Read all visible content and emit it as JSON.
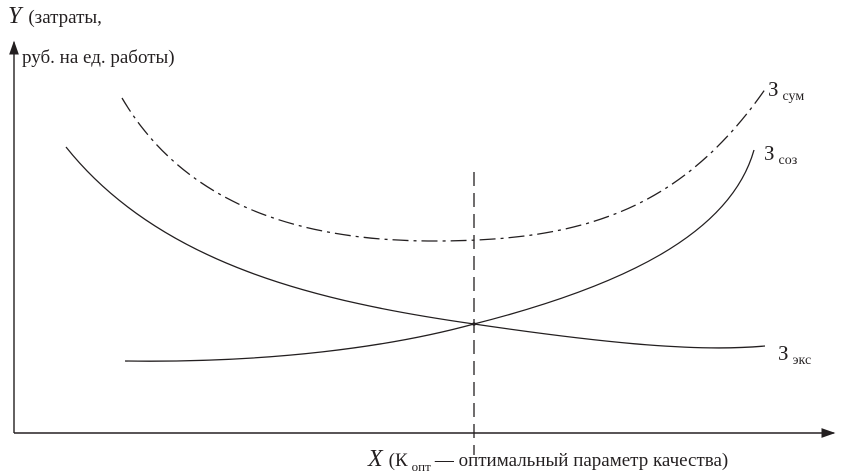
{
  "y_axis": {
    "variable": "Y",
    "caption_line1": "(затраты,",
    "caption_line2": "руб. на ед. работы)"
  },
  "x_axis": {
    "variable": "X",
    "caption_open": "(К",
    "caption_sub": "опт",
    "caption_rest": " — оптимальный параметр качества)"
  },
  "curves": {
    "total": {
      "label_main": "З",
      "label_sub": "сум",
      "style": "dash-dot"
    },
    "creation": {
      "label_main": "З",
      "label_sub": "соз",
      "style": "solid"
    },
    "operation": {
      "label_main": "З",
      "label_sub": "экс",
      "style": "solid"
    }
  },
  "optimum_line": {
    "style": "dashed"
  },
  "colors": {
    "ink": "#231f20",
    "background": "#ffffff"
  }
}
